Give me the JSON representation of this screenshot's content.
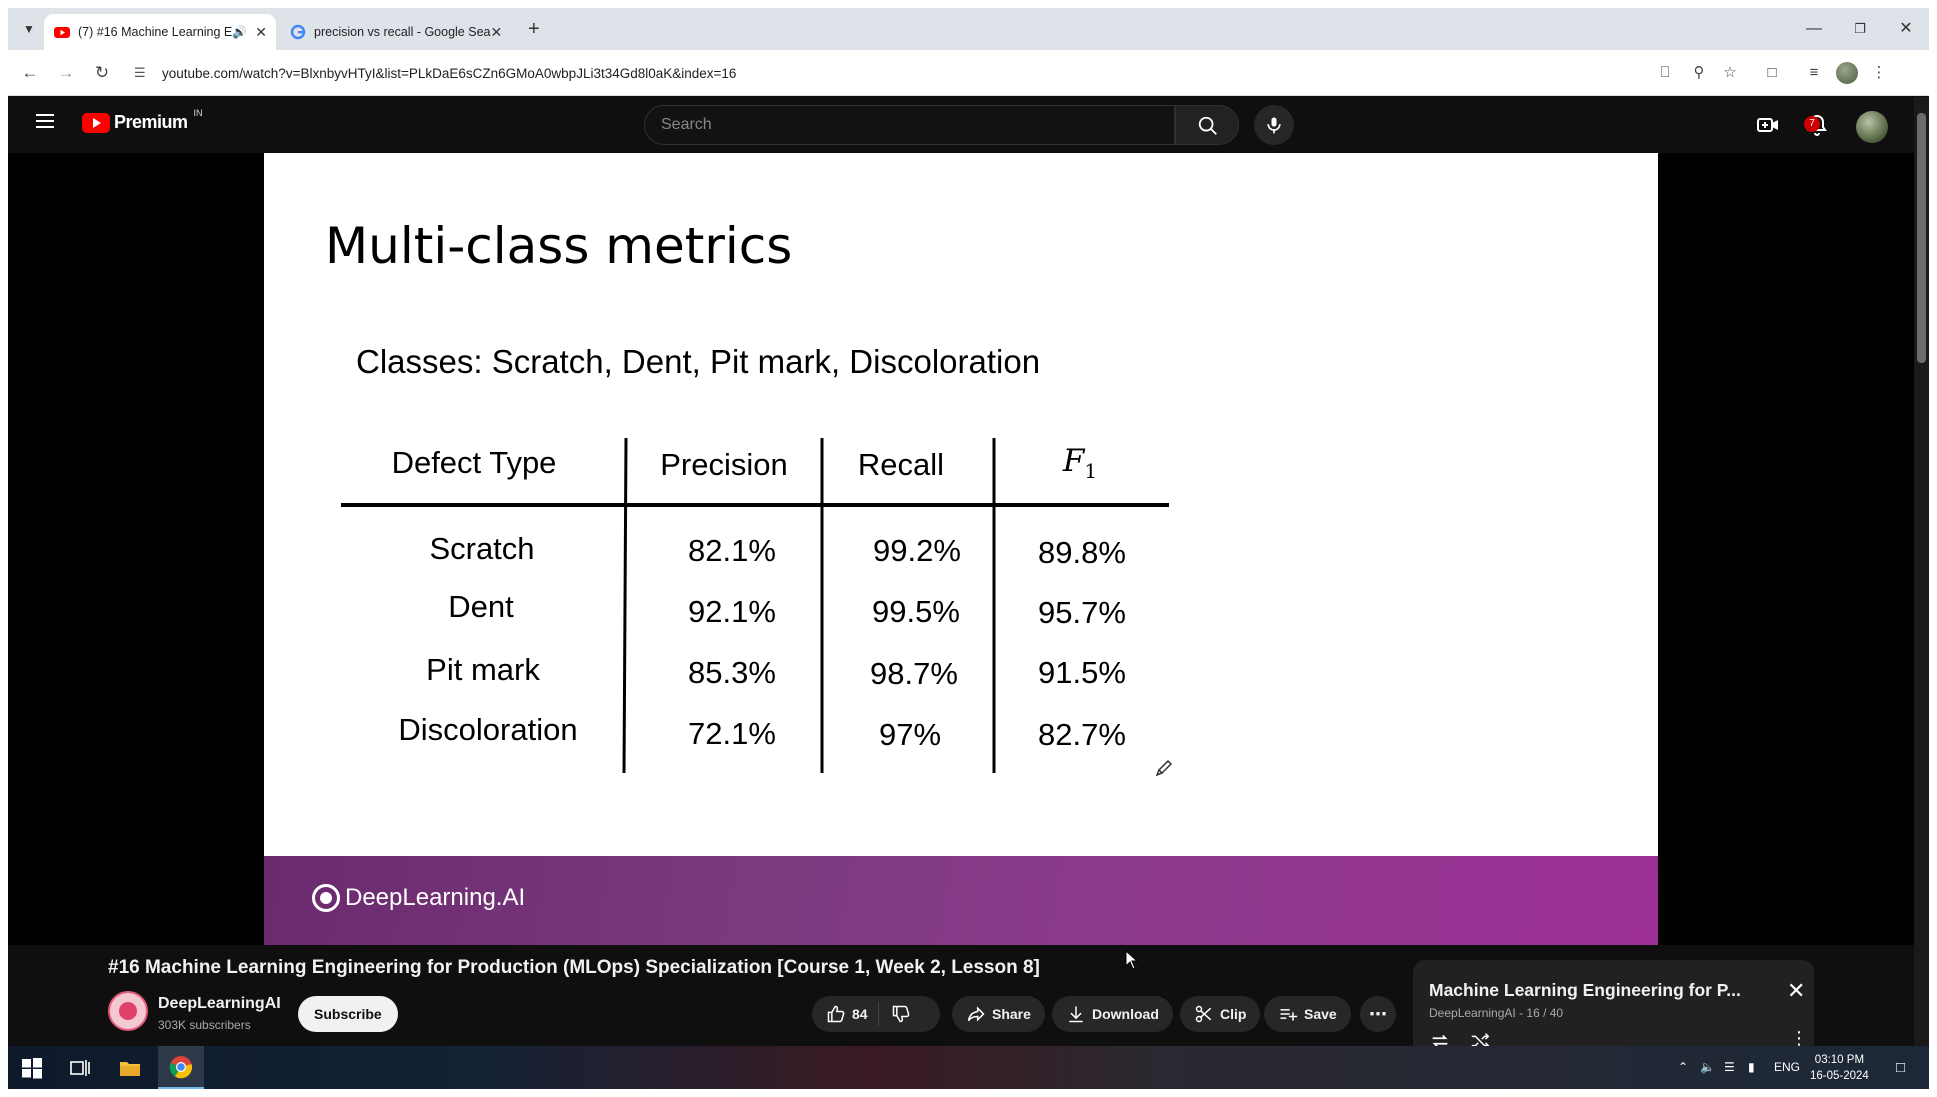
{
  "browser": {
    "tabs": [
      {
        "title": "(7) #16 Machine Learning E",
        "active": true
      },
      {
        "title": "precision vs recall - Google Sea",
        "active": false
      }
    ],
    "url": "youtube.com/watch?v=BlxnbyvHTyI&list=PLkDaE6sCZn6GMoA0wbpJLi3t34Gd8l0aK&index=16"
  },
  "youtube": {
    "logo_text": "Premium",
    "country_code": "IN",
    "search_placeholder": "Search",
    "notification_count": "7"
  },
  "slide": {
    "title": "Multi-class metrics",
    "subtitle": "Classes: Scratch, Dent, Pit mark, Discoloration",
    "headers": [
      "Defect Type",
      "Precision",
      "Recall",
      "F"
    ],
    "f1_subscript": "1",
    "rows": [
      {
        "type": "Scratch",
        "precision": "82.1%",
        "recall": "99.2%",
        "f1": "89.8%"
      },
      {
        "type": "Dent",
        "precision": "92.1%",
        "recall": "99.5%",
        "f1": "95.7%"
      },
      {
        "type": "Pit mark",
        "precision": "85.3%",
        "recall": "98.7%",
        "f1": "91.5%"
      },
      {
        "type": "Discoloration",
        "precision": "72.1%",
        "recall": "97%",
        "f1": "82.7%"
      }
    ],
    "brand": "DeepLearning.AI",
    "footer_color": "#7a3a7d"
  },
  "video": {
    "title": "#16 Machine Learning Engineering for Production (MLOps) Specialization [Course 1, Week 2, Lesson 8]",
    "channel": "DeepLearningAI",
    "subscribers": "303K subscribers",
    "subscribe_label": "Subscribe",
    "likes": "84",
    "share_label": "Share",
    "download_label": "Download",
    "clip_label": "Clip",
    "save_label": "Save"
  },
  "miniplayer": {
    "title": "Machine Learning Engineering for P...",
    "subtitle": "DeepLearningAI - 16 / 40"
  },
  "taskbar": {
    "lang": "ENG",
    "time": "03:10 PM",
    "date": "16-05-2024"
  }
}
